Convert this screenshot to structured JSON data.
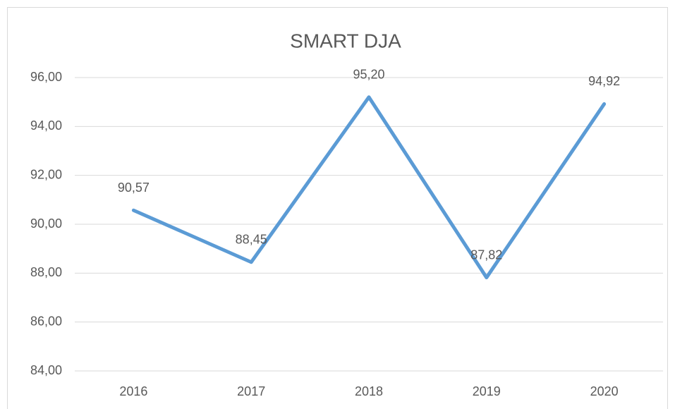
{
  "chart_data": {
    "type": "line",
    "title": "SMART DJA",
    "categories": [
      "2016",
      "2017",
      "2018",
      "2019",
      "2020"
    ],
    "series": [
      {
        "name": "SMART DJA",
        "color": "#5b9bd5",
        "values": [
          90.57,
          88.45,
          95.2,
          87.82,
          94.92
        ],
        "value_labels": [
          "90,57",
          "88,45",
          "95,20",
          "87,82",
          "94,92"
        ]
      }
    ],
    "ylim": [
      84,
      96
    ],
    "yticks": [
      {
        "value": 84,
        "label": "84,00"
      },
      {
        "value": 86,
        "label": "86,00"
      },
      {
        "value": 88,
        "label": "88,00"
      },
      {
        "value": 90,
        "label": "90,00"
      },
      {
        "value": 92,
        "label": "92,00"
      },
      {
        "value": 94,
        "label": "94,00"
      },
      {
        "value": 96,
        "label": "96,00"
      }
    ],
    "grid": true
  }
}
